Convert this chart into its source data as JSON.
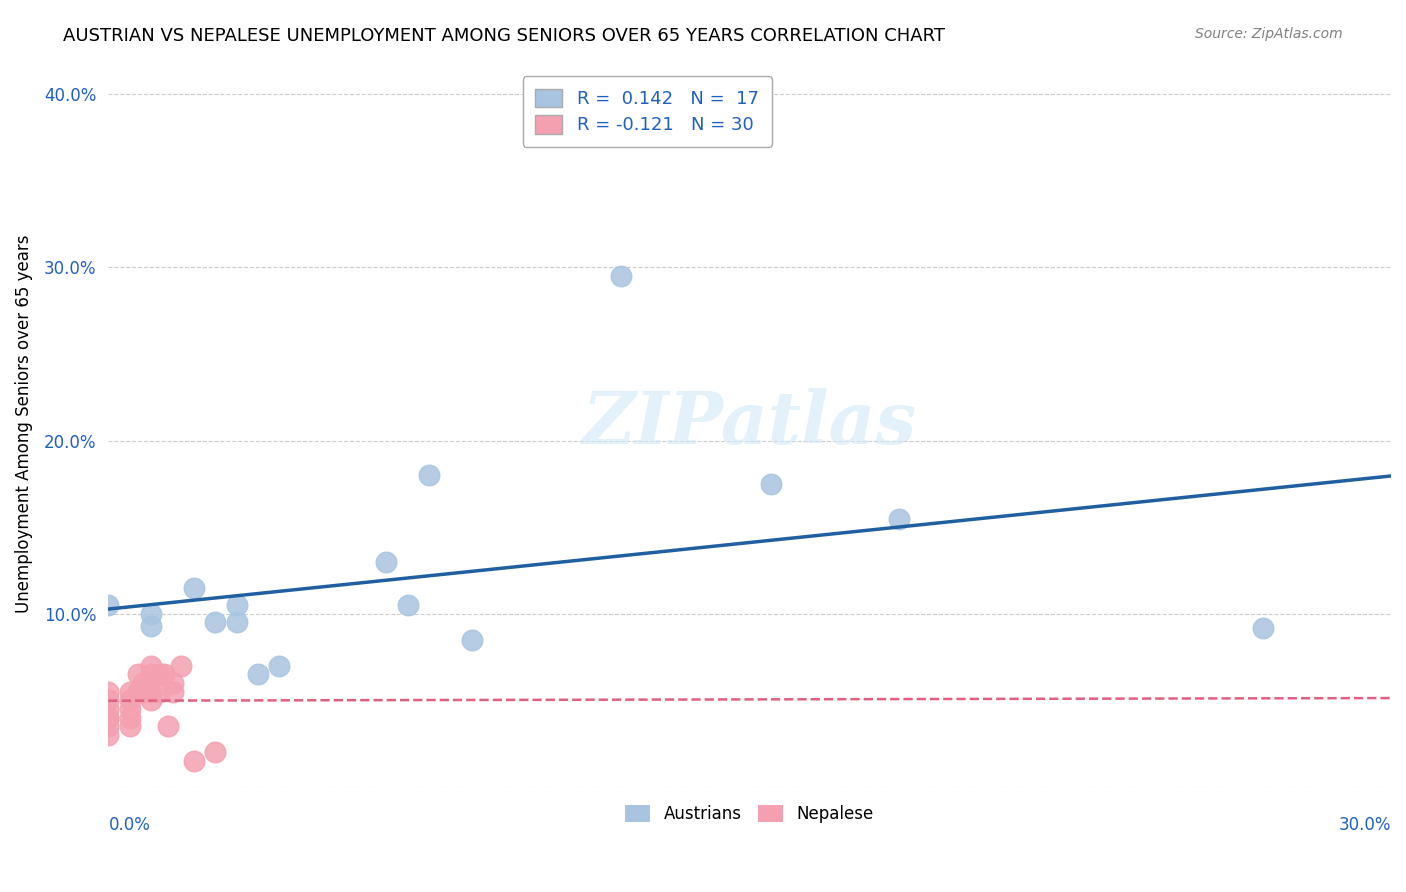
{
  "title": "AUSTRIAN VS NEPALESE UNEMPLOYMENT AMONG SENIORS OVER 65 YEARS CORRELATION CHART",
  "source": "Source: ZipAtlas.com",
  "ylabel": "Unemployment Among Seniors over 65 years",
  "xlim": [
    0.0,
    0.3
  ],
  "ylim": [
    0.0,
    0.42
  ],
  "yticks": [
    0.0,
    0.1,
    0.2,
    0.3,
    0.4
  ],
  "austrian_color": "#a8c4e0",
  "nepalese_color": "#f4a0b0",
  "trend_austrian_color": "#2060a0",
  "trend_nepalese_color": "#e06080",
  "legend_text_color": "#2060c0",
  "watermark_color": "#d0e8f8",
  "austrian_R": 0.142,
  "austrian_N": 17,
  "nepalese_R": -0.121,
  "nepalese_N": 30,
  "austrian_x": [
    0.0,
    0.01,
    0.01,
    0.02,
    0.025,
    0.03,
    0.03,
    0.035,
    0.04,
    0.065,
    0.07,
    0.075,
    0.085,
    0.12,
    0.155,
    0.185,
    0.27
  ],
  "austrian_y": [
    0.105,
    0.1,
    0.093,
    0.115,
    0.095,
    0.095,
    0.105,
    0.065,
    0.07,
    0.13,
    0.105,
    0.18,
    0.085,
    0.295,
    0.175,
    0.155,
    0.092
  ],
  "nepalese_x": [
    0.0,
    0.0,
    0.0,
    0.0,
    0.0,
    0.0,
    0.0,
    0.005,
    0.005,
    0.005,
    0.005,
    0.005,
    0.007,
    0.007,
    0.008,
    0.008,
    0.009,
    0.01,
    0.01,
    0.01,
    0.01,
    0.012,
    0.012,
    0.013,
    0.014,
    0.015,
    0.015,
    0.017,
    0.02,
    0.025
  ],
  "nepalese_y": [
    0.055,
    0.05,
    0.045,
    0.04,
    0.04,
    0.035,
    0.03,
    0.055,
    0.05,
    0.045,
    0.04,
    0.035,
    0.065,
    0.055,
    0.06,
    0.055,
    0.06,
    0.07,
    0.065,
    0.055,
    0.05,
    0.065,
    0.055,
    0.065,
    0.035,
    0.06,
    0.055,
    0.07,
    0.015,
    0.02
  ],
  "background_color": "#ffffff",
  "grid_color": "#cccccc"
}
